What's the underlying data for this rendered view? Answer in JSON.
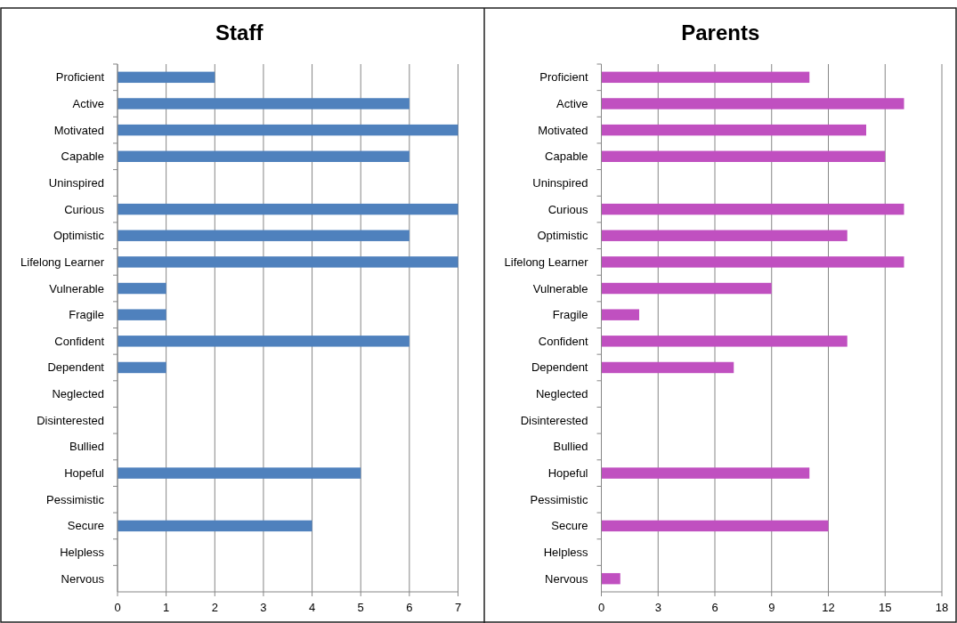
{
  "chart_data": [
    {
      "type": "bar",
      "orientation": "horizontal",
      "title": "Staff",
      "categories": [
        "Proficient",
        "Active",
        "Motivated",
        "Capable",
        "Uninspired",
        "Curious",
        "Optimistic",
        "Lifelong Learner",
        "Vulnerable",
        "Fragile",
        "Confident",
        "Dependent",
        "Neglected",
        "Disinterested",
        "Bullied",
        "Hopeful",
        "Pessimistic",
        "Secure",
        "Helpless",
        "Nervous"
      ],
      "series": [
        {
          "color": "#4f81bd",
          "values": [
            2,
            6,
            7,
            6,
            0,
            7,
            6,
            7,
            1,
            1,
            6,
            1,
            0,
            0,
            0,
            5,
            0,
            4,
            0,
            0
          ]
        }
      ],
      "xlim": [
        0,
        7
      ],
      "xticks": [
        0,
        1,
        2,
        3,
        4,
        5,
        6,
        7
      ],
      "grid": "x"
    },
    {
      "type": "bar",
      "orientation": "horizontal",
      "title": "Parents",
      "categories": [
        "Proficient",
        "Active",
        "Motivated",
        "Capable",
        "Uninspired",
        "Curious",
        "Optimistic",
        "Lifelong Learner",
        "Vulnerable",
        "Fragile",
        "Confident",
        "Dependent",
        "Neglected",
        "Disinterested",
        "Bullied",
        "Hopeful",
        "Pessimistic",
        "Secure",
        "Helpless",
        "Nervous"
      ],
      "series": [
        {
          "color": "#c050c0",
          "values": [
            11,
            16,
            14,
            15,
            0,
            16,
            13,
            16,
            9,
            2,
            13,
            7,
            0,
            0,
            0,
            11,
            0,
            12,
            0,
            1
          ]
        }
      ],
      "xlim": [
        0,
        18
      ],
      "xticks": [
        0,
        3,
        6,
        9,
        12,
        15,
        18
      ],
      "grid": "x"
    }
  ]
}
